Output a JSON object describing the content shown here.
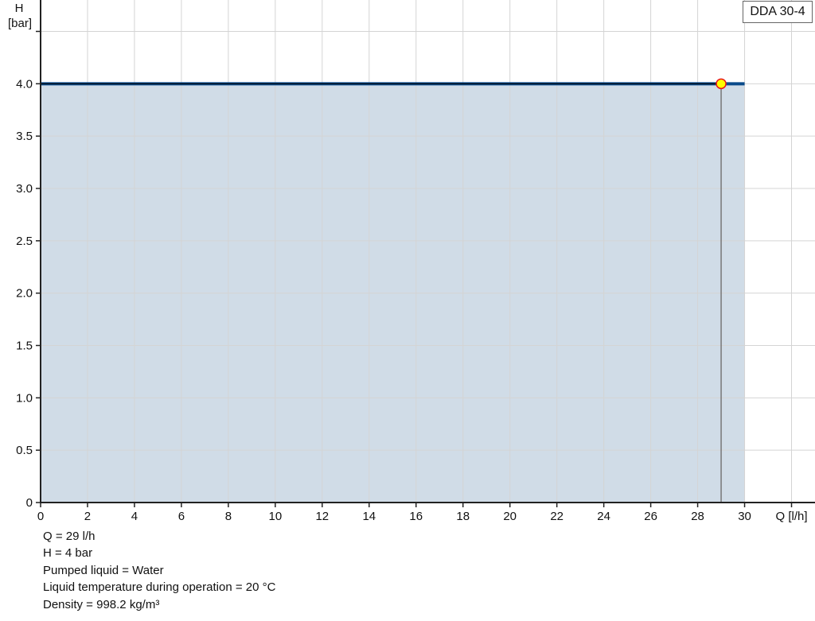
{
  "chart_data": {
    "type": "area",
    "title": "",
    "xlabel": "Q [l/h]",
    "ylabel_line1": "H",
    "ylabel_line2": "[bar]",
    "xlim": [
      0,
      33
    ],
    "ylim": [
      0,
      4.8
    ],
    "xticks": [
      0,
      2,
      4,
      6,
      8,
      10,
      12,
      14,
      16,
      18,
      20,
      22,
      24,
      26,
      28,
      30
    ],
    "xgrid": [
      0,
      2,
      4,
      6,
      8,
      10,
      12,
      14,
      16,
      18,
      20,
      22,
      24,
      26,
      28,
      30,
      32
    ],
    "yticks": [
      0,
      0.5,
      1.0,
      1.5,
      2.0,
      2.5,
      3.0,
      3.5,
      4.0
    ],
    "ygrid": [
      0,
      0.5,
      1.0,
      1.5,
      2.0,
      2.5,
      3.0,
      3.5,
      4.0,
      4.5
    ],
    "grid": true,
    "legend": "top-right",
    "series": [
      {
        "name": "DDA 30-4",
        "x": [
          0,
          30
        ],
        "y": [
          4.0,
          4.0
        ],
        "color": "#0a4a8a",
        "fill": "#d0dce7"
      }
    ],
    "operating_point": {
      "x": 29,
      "y": 4.0,
      "fill": "#ffff00",
      "stroke": "#e8141a"
    }
  },
  "info": [
    "Q = 29 l/h",
    "H = 4 bar",
    "Pumped liquid = Water",
    "Liquid temperature during operation = 20 °C",
    "Density = 998.2 kg/m³"
  ]
}
